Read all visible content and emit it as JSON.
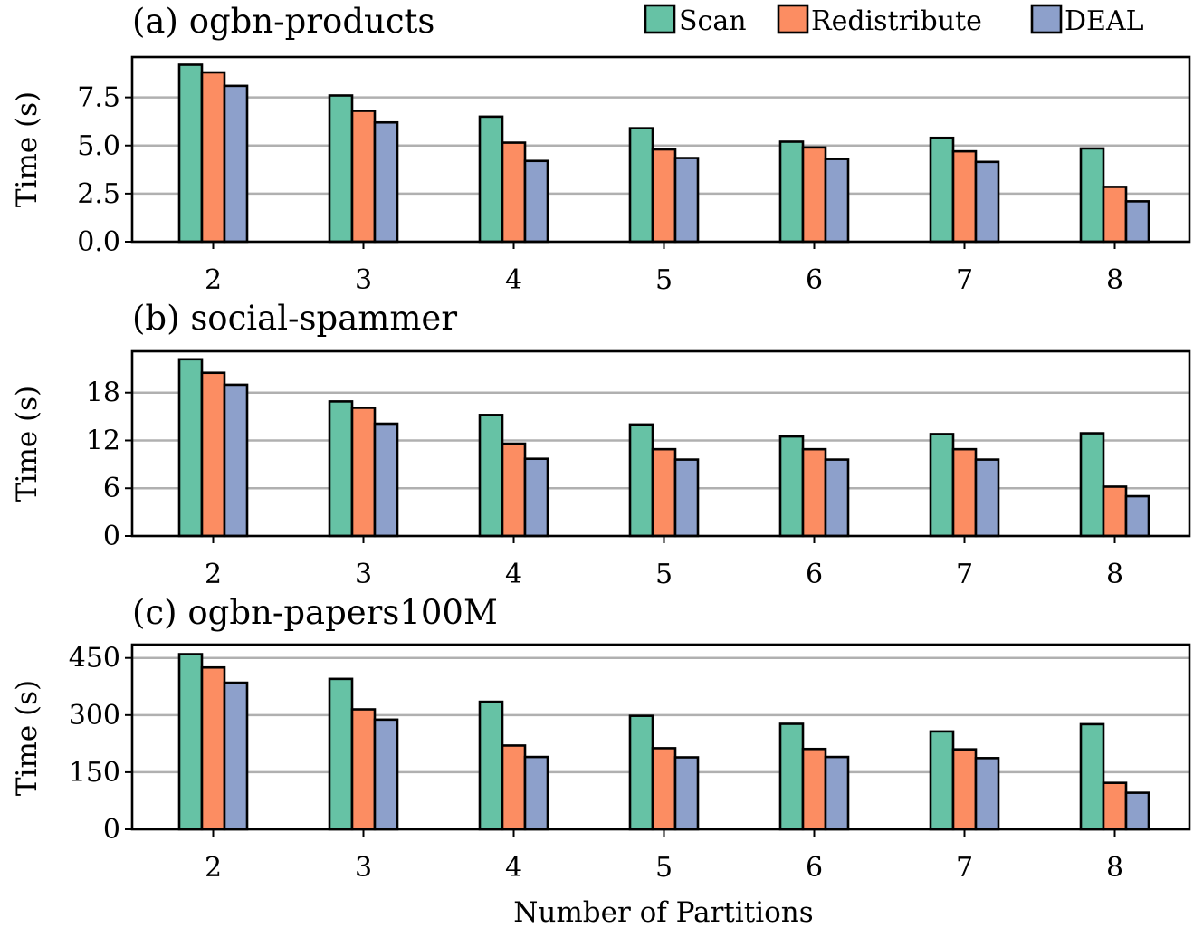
{
  "chart_data": [
    {
      "type": "bar",
      "title": "(a) ogbn-products",
      "xlabel": "",
      "ylabel": "Time (s)",
      "categories": [
        "2",
        "3",
        "4",
        "5",
        "6",
        "7",
        "8"
      ],
      "yticks": [
        "0.0",
        "2.5",
        "5.0",
        "7.5"
      ],
      "ylim": [
        0,
        9.6
      ],
      "grid": true,
      "series": [
        {
          "name": "Scan",
          "color": "#66c2a5",
          "values": [
            9.2,
            7.6,
            6.5,
            5.9,
            5.2,
            5.4,
            4.85
          ]
        },
        {
          "name": "Redistribute",
          "color": "#fc8d62",
          "values": [
            8.8,
            6.8,
            5.15,
            4.8,
            4.9,
            4.7,
            2.85
          ]
        },
        {
          "name": "DEAL",
          "color": "#8da0cb",
          "values": [
            8.1,
            6.2,
            4.2,
            4.35,
            4.3,
            4.15,
            2.1
          ]
        }
      ]
    },
    {
      "type": "bar",
      "title": "(b) social-spammer",
      "xlabel": "",
      "ylabel": "Time (s)",
      "categories": [
        "2",
        "3",
        "4",
        "5",
        "6",
        "7",
        "8"
      ],
      "yticks": [
        "0",
        "6",
        "12",
        "18"
      ],
      "ylim": [
        0,
        23.2
      ],
      "grid": true,
      "series": [
        {
          "name": "Scan",
          "color": "#66c2a5",
          "values": [
            22.2,
            16.9,
            15.2,
            14.0,
            12.5,
            12.8,
            12.9
          ]
        },
        {
          "name": "Redistribute",
          "color": "#fc8d62",
          "values": [
            20.5,
            16.1,
            11.6,
            10.9,
            10.9,
            10.9,
            6.2
          ]
        },
        {
          "name": "DEAL",
          "color": "#8da0cb",
          "values": [
            19.0,
            14.1,
            9.7,
            9.6,
            9.6,
            9.6,
            5.0
          ]
        }
      ]
    },
    {
      "type": "bar",
      "title": "(c) ogbn-papers100M",
      "xlabel": "Number of Partitions",
      "ylabel": "Time (s)",
      "categories": [
        "2",
        "3",
        "4",
        "5",
        "6",
        "7",
        "8"
      ],
      "yticks": [
        "0",
        "150",
        "300",
        "450"
      ],
      "ylim": [
        0,
        485
      ],
      "grid": true,
      "series": [
        {
          "name": "Scan",
          "color": "#66c2a5",
          "values": [
            460,
            395,
            335,
            298,
            277,
            257,
            276
          ]
        },
        {
          "name": "Redistribute",
          "color": "#fc8d62",
          "values": [
            425,
            315,
            220,
            213,
            211,
            210,
            122
          ]
        },
        {
          "name": "DEAL",
          "color": "#8da0cb",
          "values": [
            385,
            288,
            190,
            189,
            190,
            187,
            96
          ]
        }
      ]
    }
  ],
  "legend": {
    "placement": "top-right",
    "items": [
      {
        "label": "Scan",
        "color": "#66c2a5"
      },
      {
        "label": "Redistribute",
        "color": "#fc8d62"
      },
      {
        "label": "DEAL",
        "color": "#8da0cb"
      }
    ]
  }
}
